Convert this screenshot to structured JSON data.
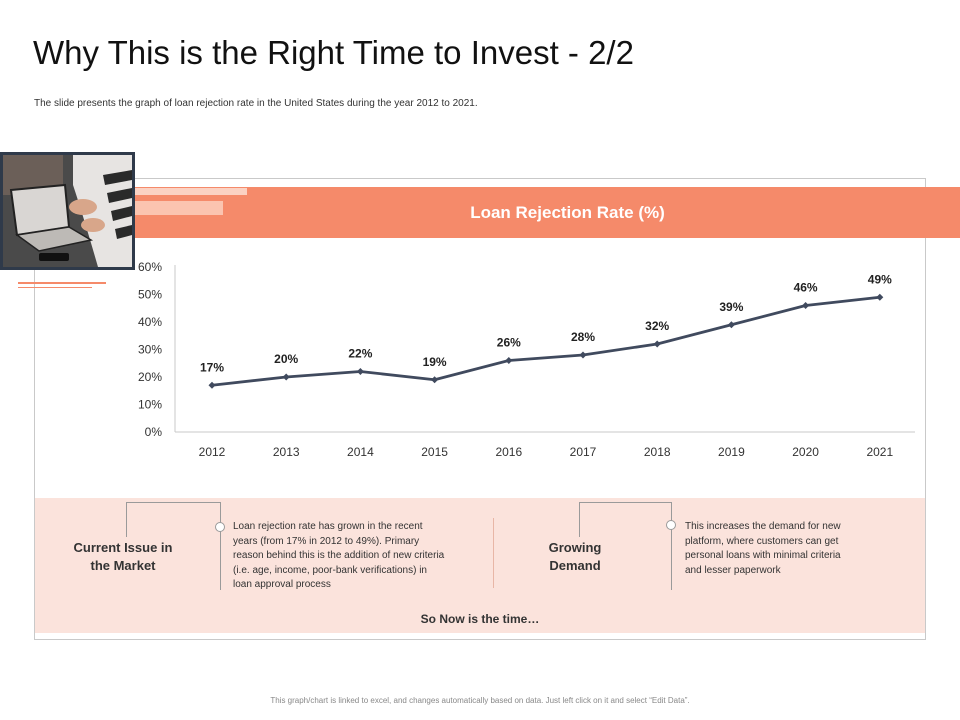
{
  "slide": {
    "title": "Why This is the Right Time to Invest - 2/2",
    "subtitle": "The slide presents the graph of loan rejection rate in the United States during the year 2012 to 2021.",
    "footer": "This graph/chart is linked to excel, and changes automatically based on data. Just left click on it and select “Edit Data”."
  },
  "colors": {
    "accent": "#f58a6a",
    "line": "#404a5e",
    "panel": "#fbe3dc"
  },
  "chart_data": {
    "type": "line",
    "title": "Loan Rejection Rate (%)",
    "categories": [
      "2012",
      "2013",
      "2014",
      "2015",
      "2016",
      "2017",
      "2018",
      "2019",
      "2020",
      "2021"
    ],
    "values": [
      17,
      20,
      22,
      19,
      26,
      28,
      32,
      39,
      46,
      49
    ],
    "data_labels": [
      "17%",
      "20%",
      "22%",
      "19%",
      "26%",
      "28%",
      "32%",
      "39%",
      "46%",
      "49%"
    ],
    "yticks": [
      "0%",
      "10%",
      "20%",
      "30%",
      "40%",
      "50%",
      "60%"
    ],
    "ylim": [
      0,
      60
    ],
    "xlabel": "",
    "ylabel": "",
    "grid": false
  },
  "panel": {
    "issue_title": "Current Issue in the Market",
    "issue_text": "Loan rejection rate has grown in the recent years (from 17% in 2012 to 49%). Primary reason behind this is the addition of new criteria (i.e. age, income, poor-bank verifications) in loan approval process",
    "demand_title": "Growing Demand",
    "demand_text": "This increases the demand for new platform, where customers can get personal loans with minimal criteria and lesser paperwork",
    "conclusion": "So Now is the time…"
  }
}
